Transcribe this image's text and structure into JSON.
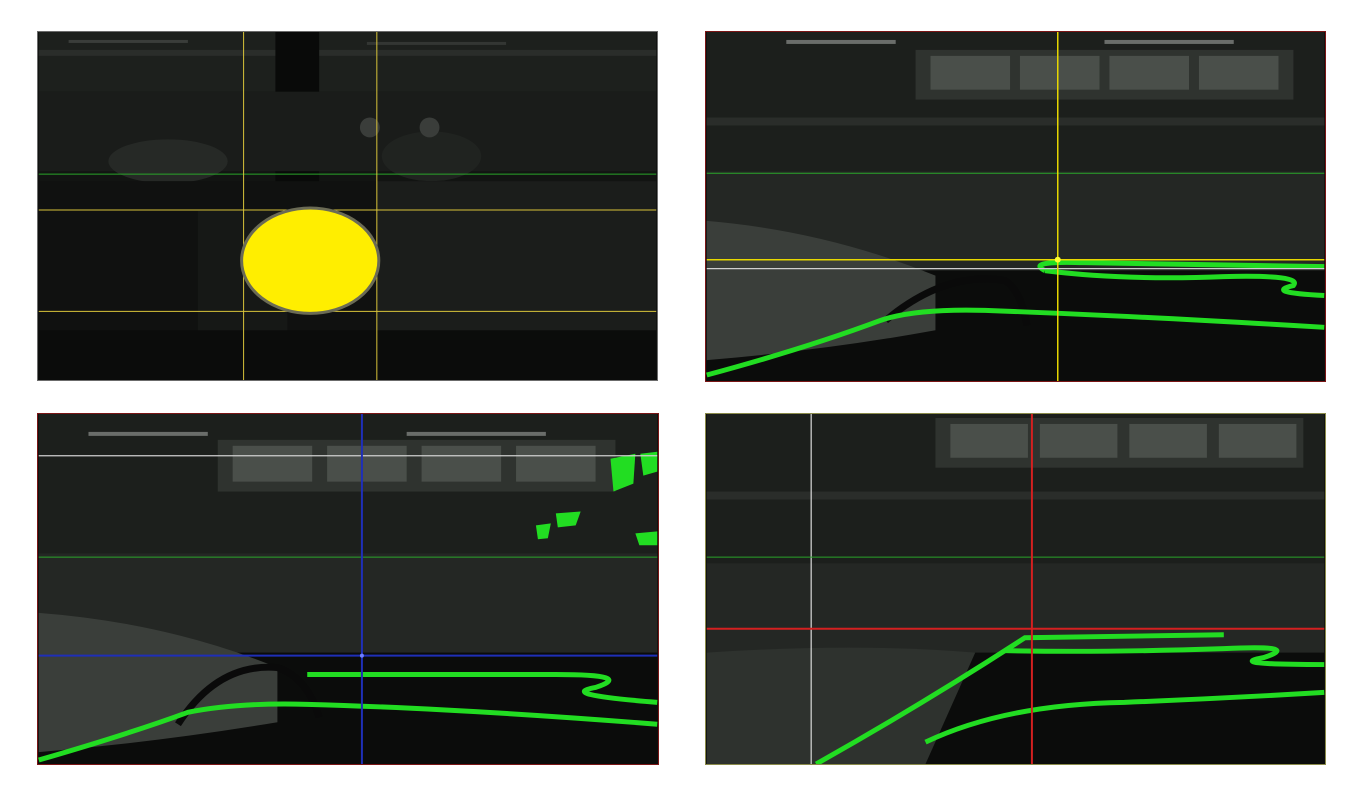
{
  "panels": [
    {
      "id": "ball-tracking-view",
      "overlay": {
        "crosshair_color": "#d9c43a",
        "reference_color": "#2aa52a",
        "target_color": "#ffee00",
        "target_shape": "filled-ellipse"
      }
    },
    {
      "id": "track-view-yellow-crosshair",
      "overlay": {
        "crosshair_color": "#e8d800",
        "reference_color": "#2aa52a",
        "horizon_color": "#cfcfcf",
        "line_highlight_color": "#22dd22"
      }
    },
    {
      "id": "track-view-blue-crosshair",
      "overlay": {
        "crosshair_color": "#1f2fb8",
        "reference_color": "#2aa52a",
        "horizon_color": "#cfcfcf",
        "line_highlight_color": "#22dd22"
      }
    },
    {
      "id": "track-view-red-crosshair",
      "overlay": {
        "crosshair_color": "#d42020",
        "reference_color": "#2aa52a",
        "guide_color": "#dcdcdc",
        "line_highlight_color": "#22dd22"
      }
    }
  ]
}
